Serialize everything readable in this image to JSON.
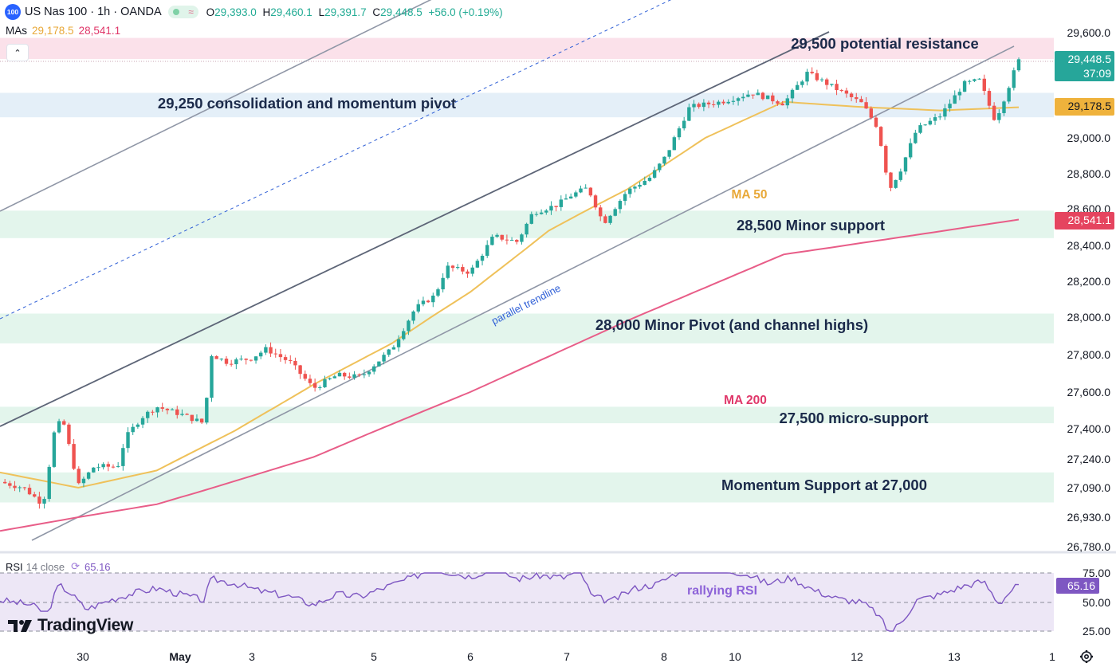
{
  "header": {
    "symbol_badge": "100",
    "title": "US Nas 100 · 1h · OANDA",
    "open_label": "O",
    "open": "29,393.0",
    "high_label": "H",
    "high": "29,460.1",
    "low_label": "L",
    "low": "29,391.7",
    "close_label": "C",
    "close": "29,448.5",
    "change": "+56.0 (+0.19%)"
  },
  "mas_legend": {
    "label": "MAs",
    "ma50_value": "29,178.5",
    "ma200_value": "28,541.1"
  },
  "rsi_legend": {
    "label": "RSI",
    "params": "14 close",
    "value": "65.16"
  },
  "branding": {
    "logo_text": "TradingView"
  },
  "colors": {
    "up": "#26a69a",
    "down": "#ef5350",
    "ma50": "#efc15a",
    "ma200": "#e85d88",
    "resistance_zone": "#fbe1ea",
    "pivot_zone": "#e4eff8",
    "support_zone": "#e3f5ec",
    "annotation_text": "#1b2a4a",
    "rsi_line": "#7e57c2",
    "rsi_band": "#ede7f6"
  },
  "chart_data": [
    {
      "type": "candlestick",
      "instrument": "US Nas 100",
      "timeframe": "1h",
      "yaxis_ticks": [
        29600,
        29400,
        29200,
        29000,
        28800,
        28600,
        28400,
        28200,
        28000,
        27800,
        27600,
        27400,
        27240,
        27090,
        26930,
        26780
      ],
      "yaxis_tick_labels": [
        "29,600.0",
        "29,400.0",
        "29,200.0",
        "29,000.0",
        "28,800.0",
        "28,600.0",
        "28,400.0",
        "28,200.0",
        "28,000.0",
        "27,800.0",
        "27,600.0",
        "27,400.0",
        "27,240.0",
        "27,090.0",
        "26,930.0",
        "26,780.0"
      ],
      "xaxis_labels": [
        "30",
        "May",
        "3",
        "5",
        "6",
        "7",
        "8",
        "10",
        "12",
        "13",
        "1"
      ],
      "price_path": [
        [
          0,
          27120
        ],
        [
          0.3,
          27090
        ],
        [
          0.55,
          27000
        ],
        [
          0.7,
          27400
        ],
        [
          0.8,
          27450
        ],
        [
          1.0,
          27100
        ],
        [
          1.2,
          27200
        ],
        [
          1.5,
          27200
        ],
        [
          1.6,
          27350
        ],
        [
          1.8,
          27460
        ],
        [
          2.0,
          27520
        ],
        [
          2.3,
          27480
        ],
        [
          2.6,
          27430
        ],
        [
          2.7,
          27800
        ],
        [
          2.9,
          27760
        ],
        [
          3.2,
          27780
        ],
        [
          3.4,
          27830
        ],
        [
          3.7,
          27760
        ],
        [
          4.0,
          27620
        ],
        [
          4.3,
          27690
        ],
        [
          4.6,
          27680
        ],
        [
          5.0,
          27830
        ],
        [
          5.3,
          28050
        ],
        [
          5.55,
          28120
        ],
        [
          5.7,
          28280
        ],
        [
          6.0,
          28250
        ],
        [
          6.3,
          28450
        ],
        [
          6.6,
          28420
        ],
        [
          6.8,
          28580
        ],
        [
          7.1,
          28620
        ],
        [
          7.3,
          28680
        ],
        [
          7.5,
          28720
        ],
        [
          7.7,
          28520
        ],
        [
          8.0,
          28700
        ],
        [
          8.3,
          28780
        ],
        [
          8.5,
          28900
        ],
        [
          8.8,
          29180
        ],
        [
          9.2,
          29210
        ],
        [
          9.6,
          29260
        ],
        [
          10.0,
          29200
        ],
        [
          10.3,
          29370
        ],
        [
          10.6,
          29300
        ],
        [
          11.0,
          29200
        ],
        [
          11.2,
          29060
        ],
        [
          11.35,
          28710
        ],
        [
          11.5,
          28830
        ],
        [
          11.7,
          29050
        ],
        [
          12.0,
          29130
        ],
        [
          12.3,
          29310
        ],
        [
          12.5,
          29330
        ],
        [
          12.7,
          29100
        ],
        [
          12.85,
          29270
        ],
        [
          13.0,
          29448.5
        ]
      ],
      "last_price": "29,448.5",
      "countdown": "37:09",
      "moving_averages": [
        {
          "name": "MA 50",
          "last_label": "29,178.5",
          "values": [
            [
              0,
              27170
            ],
            [
              1.0,
              27090
            ],
            [
              2.0,
              27180
            ],
            [
              3.0,
              27390
            ],
            [
              4.0,
              27640
            ],
            [
              5.0,
              27860
            ],
            [
              6.0,
              28140
            ],
            [
              7.0,
              28480
            ],
            [
              8.0,
              28710
            ],
            [
              9.0,
              29000
            ],
            [
              10.0,
              29210
            ],
            [
              11.0,
              29180
            ],
            [
              12.0,
              29160
            ],
            [
              13.0,
              29178.5
            ]
          ]
        },
        {
          "name": "MA 200",
          "last_label": "28,541.1",
          "values": [
            [
              0,
              26860
            ],
            [
              2.0,
              27000
            ],
            [
              4.0,
              27250
            ],
            [
              6.0,
              27600
            ],
            [
              8.0,
              27980
            ],
            [
              10.0,
              28350
            ],
            [
              13.0,
              28541.1
            ]
          ]
        }
      ],
      "zones": [
        {
          "label": "29,500 potential resistance",
          "from": 29450,
          "to": 29570
        },
        {
          "label": "29,250 consolidation and momentum pivot",
          "from": 29120,
          "to": 29260
        },
        {
          "label": "28,500 Minor support",
          "from": 28440,
          "to": 28590
        },
        {
          "label": "28,000 Minor Pivot (and channel highs)",
          "from": 27860,
          "to": 28020
        },
        {
          "label": "27,500 micro-support",
          "from": 27430,
          "to": 27520
        },
        {
          "label": "Momentum Support at 27,000",
          "from": 27010,
          "to": 27170
        }
      ],
      "annotations": [
        "parallel trendline",
        "MA 50",
        "MA 200"
      ]
    },
    {
      "type": "line",
      "name": "RSI 14 close",
      "yaxis_ticks": [
        75,
        50,
        25
      ],
      "yaxis_tick_labels": [
        "75.00",
        "50.00",
        "25.00"
      ],
      "last_value": "65.16",
      "annotation": "rallying RSI",
      "values": [
        [
          0,
          52
        ],
        [
          0.4,
          48
        ],
        [
          0.6,
          40
        ],
        [
          0.75,
          65
        ],
        [
          0.9,
          58
        ],
        [
          1.1,
          44
        ],
        [
          1.4,
          52
        ],
        [
          1.7,
          58
        ],
        [
          2.0,
          62
        ],
        [
          2.3,
          57
        ],
        [
          2.6,
          52
        ],
        [
          2.7,
          70
        ],
        [
          3.0,
          66
        ],
        [
          3.3,
          60
        ],
        [
          3.7,
          55
        ],
        [
          4.0,
          48
        ],
        [
          4.3,
          57
        ],
        [
          4.6,
          55
        ],
        [
          5.0,
          65
        ],
        [
          5.3,
          72
        ],
        [
          5.5,
          80
        ],
        [
          5.7,
          76
        ],
        [
          6.0,
          72
        ],
        [
          6.3,
          79
        ],
        [
          6.6,
          70
        ],
        [
          6.9,
          73
        ],
        [
          7.2,
          71
        ],
        [
          7.4,
          78
        ],
        [
          7.55,
          55
        ],
        [
          7.8,
          51
        ],
        [
          8.1,
          62
        ],
        [
          8.4,
          66
        ],
        [
          8.7,
          78
        ],
        [
          8.95,
          81
        ],
        [
          9.2,
          77
        ],
        [
          9.5,
          75
        ],
        [
          9.8,
          66
        ],
        [
          10.1,
          71
        ],
        [
          10.4,
          60
        ],
        [
          10.7,
          53
        ],
        [
          11.0,
          50
        ],
        [
          11.2,
          40
        ],
        [
          11.35,
          23
        ],
        [
          11.5,
          33
        ],
        [
          11.7,
          52
        ],
        [
          12.0,
          57
        ],
        [
          12.3,
          64
        ],
        [
          12.55,
          68
        ],
        [
          12.75,
          49
        ],
        [
          12.9,
          60
        ],
        [
          13.0,
          65.16
        ]
      ]
    }
  ]
}
